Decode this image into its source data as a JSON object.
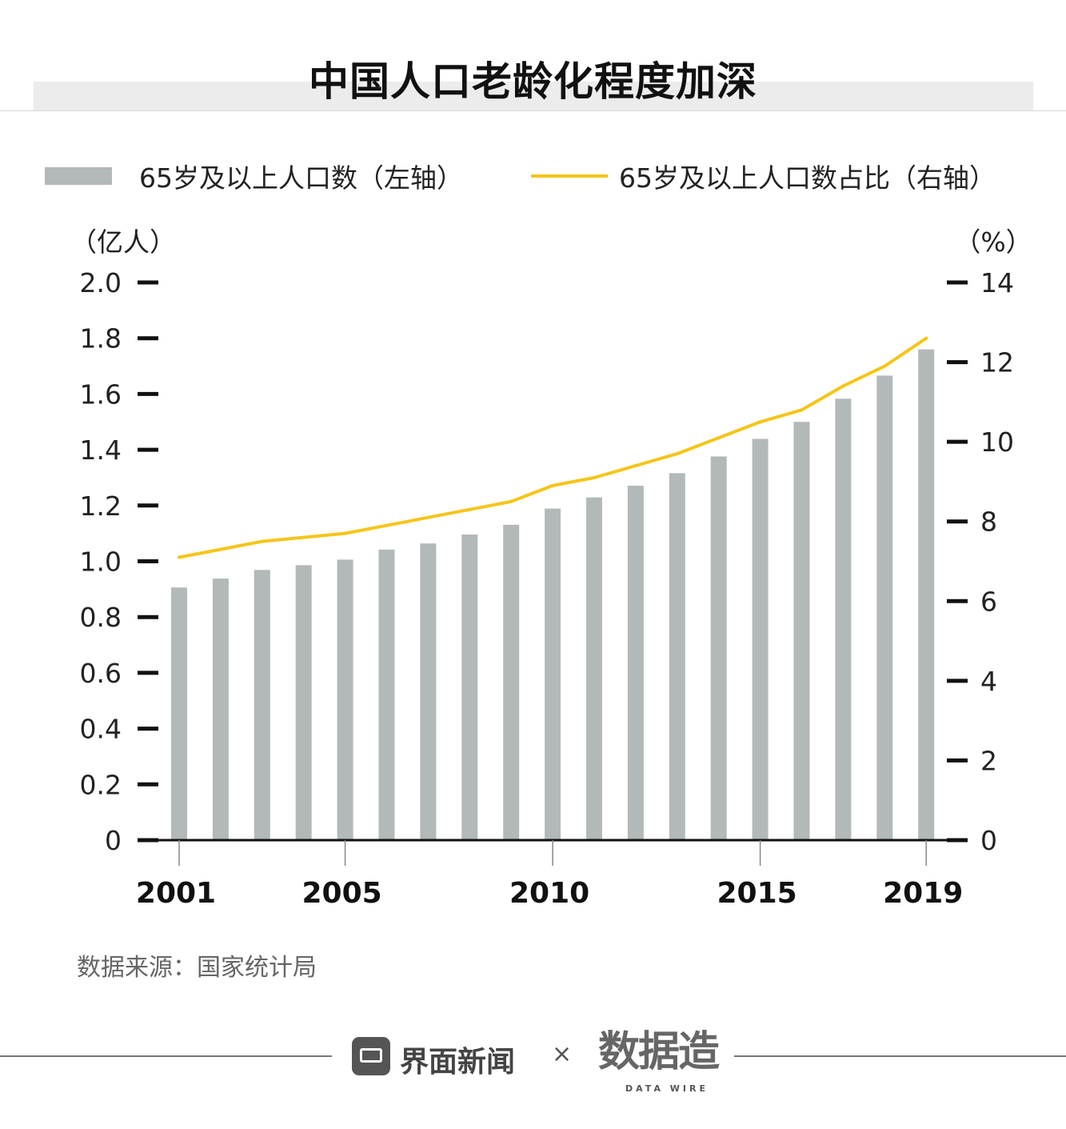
{
  "title": "中国人口老龄化程度加深",
  "legend": {
    "bar_label": "65岁及以上人口数（左轴）",
    "line_label": "65岁及以上人口数占比（右轴）"
  },
  "colors": {
    "bar": "#b3b8b8",
    "line": "#f5c518",
    "axis": "#111111",
    "band": "#ececec"
  },
  "chart_data": {
    "type": "bar+line",
    "title": "中国人口老龄化程度加深",
    "x": [
      2001,
      2002,
      2003,
      2004,
      2005,
      2006,
      2007,
      2008,
      2009,
      2010,
      2011,
      2012,
      2013,
      2014,
      2015,
      2016,
      2017,
      2018,
      2019
    ],
    "x_tick_labels": [
      "2001",
      "2005",
      "2010",
      "2015",
      "2019"
    ],
    "series": [
      {
        "name": "65岁及以上人口数（左轴）",
        "type": "bar",
        "axis": "left",
        "unit": "亿人",
        "values": [
          0.906,
          0.938,
          0.969,
          0.986,
          1.006,
          1.042,
          1.064,
          1.096,
          1.131,
          1.189,
          1.229,
          1.271,
          1.316,
          1.376,
          1.439,
          1.5,
          1.583,
          1.666,
          1.76
        ]
      },
      {
        "name": "65岁及以上人口数占比（右轴）",
        "type": "line",
        "axis": "right",
        "unit": "%",
        "values": [
          7.1,
          7.3,
          7.5,
          7.6,
          7.7,
          7.9,
          8.1,
          8.3,
          8.5,
          8.9,
          9.1,
          9.4,
          9.7,
          10.1,
          10.5,
          10.8,
          11.4,
          11.9,
          12.6
        ]
      }
    ],
    "left_axis": {
      "label": "（亿人）",
      "range": [
        0,
        2.0
      ],
      "ticks": [
        "0",
        "0.2",
        "0.4",
        "0.6",
        "0.8",
        "1.0",
        "1.2",
        "1.4",
        "1.6",
        "1.8",
        "2.0"
      ]
    },
    "right_axis": {
      "label": "（%）",
      "range": [
        0,
        14
      ],
      "ticks": [
        "0",
        "2",
        "4",
        "6",
        "8",
        "10",
        "12",
        "14"
      ]
    },
    "grid": false,
    "legend_position": "top"
  },
  "source": "数据来源：国家统计局",
  "footer": {
    "brand": "界面新闻",
    "separator": "×",
    "partner": "数据造",
    "partner_sub": "DATA WIRE"
  }
}
